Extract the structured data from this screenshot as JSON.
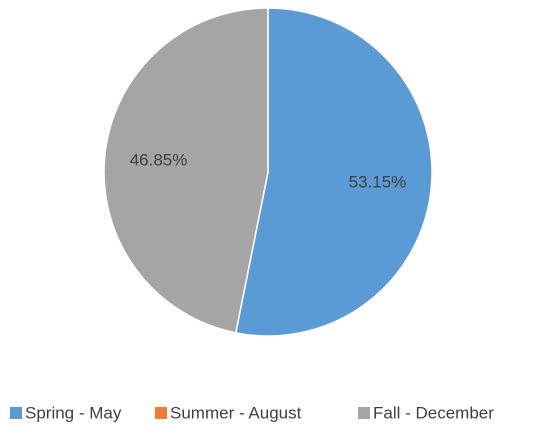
{
  "chart_data": {
    "type": "pie",
    "categories": [
      "Spring - May",
      "Summer - August",
      "Fall - December"
    ],
    "values": [
      53.15,
      0,
      46.85
    ],
    "value_labels": [
      "53.15%",
      null,
      "46.85%"
    ],
    "colors": [
      "#5b9bd5",
      "#ed7d31",
      "#a5a5a5"
    ],
    "legend": "bottom"
  }
}
